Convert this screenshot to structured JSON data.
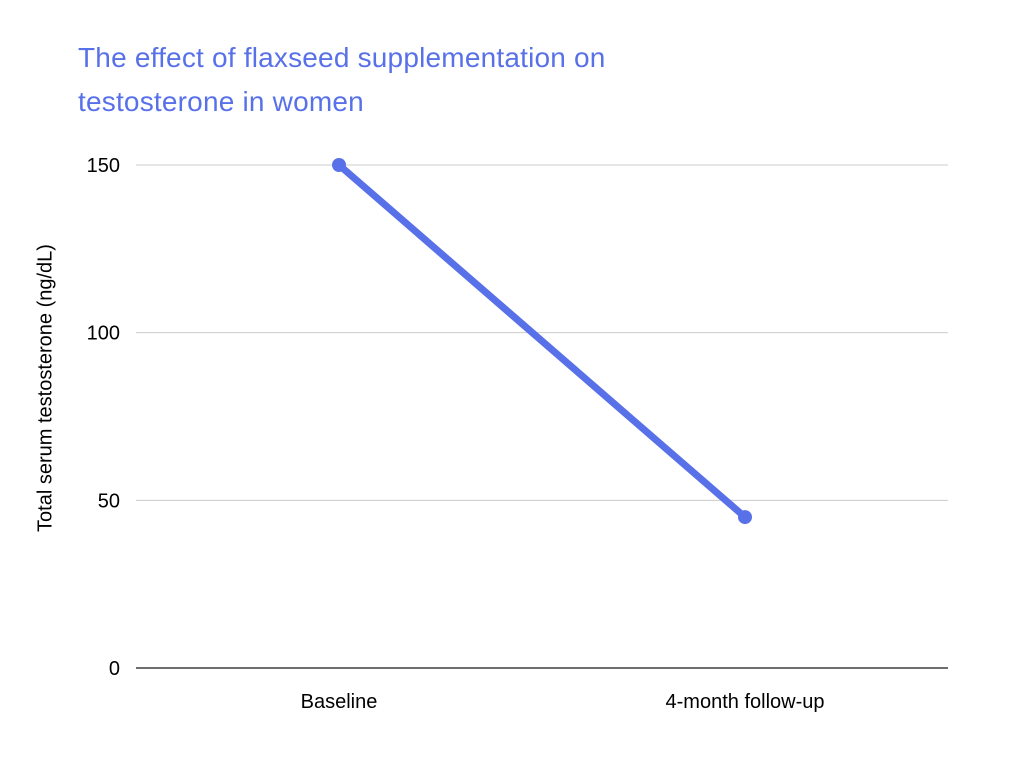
{
  "page": {
    "background": "#ffffff"
  },
  "chart_data": {
    "type": "line",
    "title": "The effect of flaxseed supplementation on testosterone in women",
    "title_color": "#5871e8",
    "categories": [
      "Baseline",
      "4-month follow-up"
    ],
    "series": [
      {
        "name": "Total serum testosterone",
        "color": "#5871e8",
        "values": [
          150,
          45
        ]
      }
    ],
    "xlabel": "",
    "ylabel": "Total serum testosterone (ng/dL)",
    "ylim": [
      0,
      150
    ],
    "yticks": [
      0,
      50,
      100,
      150
    ],
    "grid": true,
    "legend": "none",
    "gridline_color": "#cccccc",
    "axis_line_color": "#6e6e6e",
    "tick_text_color": "#000000"
  }
}
